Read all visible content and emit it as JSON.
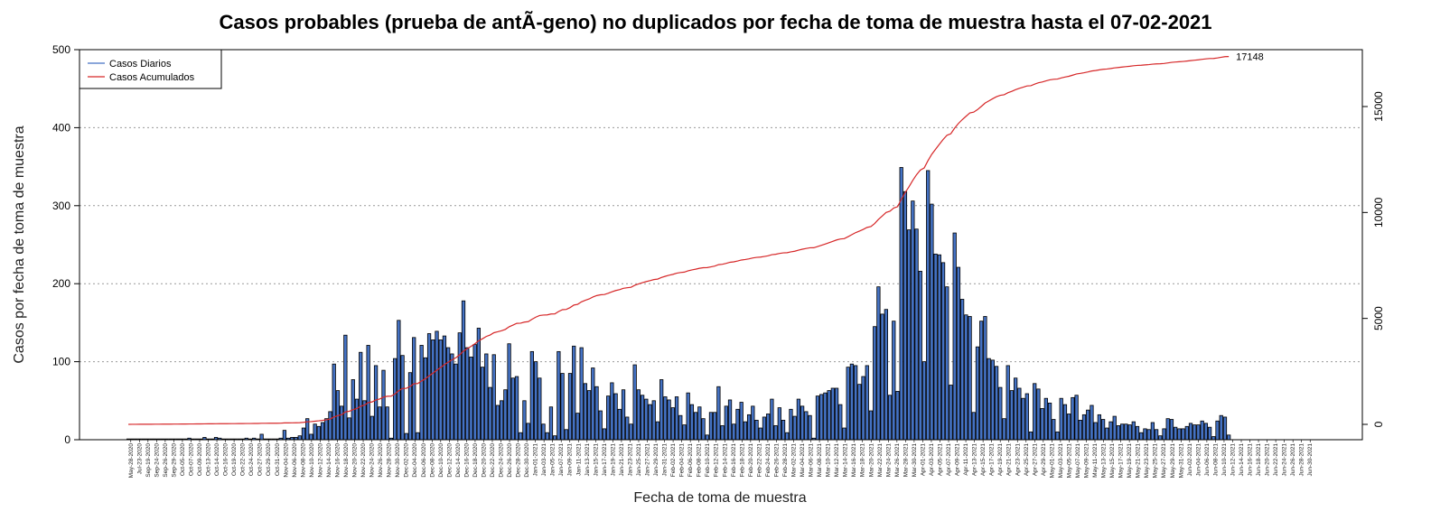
{
  "chart_data": {
    "type": "bar",
    "title": "Casos probables (prueba de antÃ-geno) no duplicados por fecha de toma de muestra hasta el 07-02-2021",
    "xlabel": "Fecha de toma de muestra",
    "ylabel": "Casos por fecha de toma de muestra",
    "ylim": [
      0,
      500
    ],
    "y2lim": [
      0,
      17500
    ],
    "y_ticks": [
      0,
      100,
      200,
      300,
      400,
      500
    ],
    "y2_ticks": [
      0,
      5000,
      10000,
      15000
    ],
    "grid": "horizontal dotted",
    "legend_position": "top-left",
    "final_cumulative_label": "17148",
    "x_tick_labels": [
      "May-28-2020",
      "Jul-23-2020",
      "Sep-19-2020",
      "Sep-24-2020",
      "Sep-26-2020",
      "Sep-29-2020",
      "Oct-05-2020",
      "Oct-07-2020",
      "Oct-09-2020",
      "Oct-13-2020",
      "Oct-14-2020",
      "Oct-16-2020",
      "Oct-19-2020",
      "Oct-22-2020",
      "Oct-24-2020",
      "Oct-27-2020",
      "Oct-29-2020",
      "Oct-31-2020",
      "Nov-04-2020",
      "Nov-06-2020",
      "Nov-08-2020",
      "Nov-10-2020",
      "Nov-12-2020",
      "Nov-14-2020",
      "Nov-16-2020",
      "Nov-18-2020",
      "Nov-20-2020",
      "Nov-22-2020",
      "Nov-24-2020",
      "Nov-26-2020",
      "Nov-28-2020",
      "Nov-30-2020",
      "Dec-02-2020",
      "Dec-04-2020",
      "Dec-06-2020",
      "Dec-08-2020",
      "Dec-10-2020",
      "Dec-12-2020",
      "Dec-14-2020",
      "Dec-16-2020",
      "Dec-18-2020",
      "Dec-20-2020",
      "Dec-22-2020",
      "Dec-24-2020",
      "Dec-26-2020",
      "Dec-28-2020",
      "Dec-30-2020",
      "Jan-01-2021",
      "Jan-03-2021",
      "Jan-05-2021",
      "Jan-07-2021",
      "Jan-09-2021",
      "Jan-11-2021",
      "Jan-13-2021",
      "Jan-15-2021",
      "Jan-17-2021",
      "Jan-19-2021",
      "Jan-21-2021",
      "Jan-23-2021",
      "Jan-25-2021",
      "Jan-27-2021",
      "Jan-29-2021",
      "Jan-31-2021",
      "Feb-02-2021",
      "Feb-04-2021",
      "Feb-06-2021",
      "Feb-08-2021",
      "Feb-10-2021",
      "Feb-12-2021",
      "Feb-14-2021",
      "Feb-16-2021",
      "Feb-18-2021",
      "Feb-20-2021",
      "Feb-22-2021",
      "Feb-24-2021",
      "Feb-26-2021",
      "Feb-28-2021",
      "Mar-02-2021",
      "Mar-04-2021",
      "Mar-06-2021",
      "Mar-08-2021",
      "Mar-10-2021",
      "Mar-12-2021",
      "Mar-14-2021",
      "Mar-16-2021",
      "Mar-18-2021",
      "Mar-20-2021",
      "Mar-22-2021",
      "Mar-24-2021",
      "Mar-26-2021",
      "Mar-28-2021",
      "Mar-30-2021",
      "Apr-01-2021",
      "Apr-03-2021",
      "Apr-05-2021",
      "Apr-07-2021",
      "Apr-09-2021",
      "Apr-11-2021",
      "Apr-13-2021",
      "Apr-15-2021",
      "Apr-17-2021",
      "Apr-19-2021",
      "Apr-21-2021",
      "Apr-23-2021",
      "Apr-25-2021",
      "Apr-27-2021",
      "Apr-29-2021",
      "May-01-2021",
      "May-03-2021",
      "May-05-2021",
      "May-07-2021",
      "May-09-2021",
      "May-11-2021",
      "May-13-2021",
      "May-15-2021",
      "May-17-2021",
      "May-19-2021",
      "May-21-2021",
      "May-23-2021",
      "May-25-2021",
      "May-27-2021",
      "May-29-2021",
      "May-31-2021",
      "Jun-02-2021",
      "Jun-04-2021",
      "Jun-06-2021",
      "Jun-08-2021",
      "Jun-10-2021",
      "Jun-12-2021",
      "Jun-14-2021",
      "Jun-16-2021",
      "Jun-18-2021",
      "Jun-20-2021",
      "Jun-22-2021",
      "Jun-24-2021",
      "Jun-26-2021",
      "Jun-28-2021",
      "Jun-30-2021"
    ],
    "series": [
      {
        "name": "Casos Diarios",
        "color": "#4472C4",
        "axis": "left",
        "values": [
          1,
          1,
          1,
          1,
          1,
          1,
          1,
          1,
          1,
          1,
          1,
          1,
          1,
          1,
          1,
          1,
          2,
          1,
          1,
          1,
          3,
          1,
          1,
          3,
          2,
          1,
          1,
          1,
          1,
          1,
          1,
          2,
          1,
          2,
          1,
          7,
          1,
          1,
          1,
          1,
          2,
          12,
          2,
          3,
          3,
          5,
          15,
          27,
          7,
          20,
          17,
          22,
          27,
          36,
          97,
          63,
          43,
          134,
          28,
          77,
          52,
          112,
          50,
          121,
          30,
          95,
          42,
          89,
          42,
          2,
          104,
          153,
          108,
          8,
          86,
          131,
          9,
          121,
          105,
          136,
          128,
          139,
          128,
          133,
          118,
          110,
          97,
          137,
          178,
          118,
          106,
          122,
          143,
          93,
          110,
          67,
          109,
          44,
          50,
          64,
          123,
          79,
          81,
          9,
          50,
          21,
          113,
          100,
          79,
          20,
          9,
          42,
          5,
          113,
          85,
          13,
          85,
          120,
          34,
          118,
          72,
          63,
          92,
          68,
          37,
          14,
          56,
          73,
          59,
          39,
          64,
          29,
          20,
          96,
          64,
          57,
          52,
          45,
          50,
          23,
          77,
          55,
          51,
          41,
          55,
          31,
          19,
          60,
          45,
          35,
          42,
          27,
          6,
          35,
          35,
          68,
          18,
          43,
          51,
          20,
          39,
          48,
          23,
          32,
          43,
          25,
          15,
          29,
          33,
          52,
          18,
          41,
          25,
          9,
          39,
          30,
          52,
          43,
          36,
          31,
          2,
          56,
          58,
          60,
          63,
          66,
          66,
          45,
          15,
          93,
          97,
          95,
          71,
          81,
          95,
          37,
          145,
          196,
          161,
          167,
          57,
          152,
          62,
          349,
          318,
          269,
          306,
          270,
          216,
          100,
          345,
          302,
          238,
          237,
          227,
          196,
          70,
          265,
          221,
          180,
          160,
          158,
          35,
          119,
          152,
          158,
          104,
          102,
          94,
          67,
          27,
          95,
          63,
          79,
          66,
          53,
          59,
          10,
          72,
          65,
          40,
          53,
          47,
          26,
          10,
          53,
          45,
          33,
          54,
          57,
          25,
          32,
          38,
          44,
          22,
          32,
          26,
          15,
          23,
          30,
          18,
          20,
          20,
          19,
          23,
          17,
          9,
          14,
          13,
          22,
          13,
          5,
          14,
          27,
          26,
          16,
          14,
          14,
          17,
          21,
          19,
          19,
          24,
          21,
          16,
          4,
          24,
          31,
          29,
          6
        ],
        "bar_positions": [
          0,
          1,
          2,
          3,
          4,
          5,
          6,
          7,
          8,
          9,
          10,
          11,
          12,
          13,
          14,
          15,
          16,
          17,
          18,
          19,
          20,
          21,
          22,
          23,
          24,
          25,
          26,
          27,
          28,
          29,
          30,
          31,
          32,
          33,
          34,
          35,
          36,
          37,
          38,
          39,
          40,
          41,
          42,
          43,
          44,
          45,
          46,
          47,
          48,
          49,
          50,
          51,
          52,
          53,
          54,
          55,
          56,
          57,
          58,
          59,
          60,
          61,
          62,
          63,
          64,
          65,
          66,
          67,
          68,
          69,
          70,
          71,
          72,
          73,
          74,
          75,
          76,
          77,
          78,
          79,
          80,
          81,
          82,
          83,
          84,
          85,
          86,
          87,
          88,
          89,
          90,
          91,
          92,
          93,
          94,
          95,
          96,
          97,
          98,
          99,
          100,
          101,
          102,
          103,
          104,
          105,
          106,
          107,
          108,
          109,
          110,
          111,
          112,
          113,
          114,
          115,
          116,
          117,
          118,
          119,
          120,
          121,
          122,
          123,
          124,
          125,
          126,
          127,
          128,
          129,
          130,
          131,
          132,
          133,
          134,
          135,
          136,
          137,
          138,
          139,
          140,
          141,
          142,
          143,
          144,
          145,
          146,
          147,
          148,
          149,
          150,
          151,
          152,
          153,
          154,
          155,
          156,
          157,
          158,
          159,
          160,
          161,
          162,
          163,
          164,
          165,
          166,
          167,
          168,
          169,
          170,
          171,
          172,
          173,
          174,
          175,
          176,
          177,
          178,
          179,
          180,
          181,
          182,
          183,
          184,
          185,
          186,
          187,
          188,
          189,
          190,
          191,
          192,
          193,
          194,
          195,
          196,
          197,
          198,
          199,
          200,
          201,
          202,
          203,
          204,
          205,
          206,
          207,
          208,
          209,
          210,
          211,
          212,
          213,
          214,
          215,
          216,
          217,
          218,
          219,
          220,
          221,
          222,
          223,
          224,
          225,
          226,
          227,
          228,
          229,
          230,
          231,
          232,
          233,
          234,
          235,
          236,
          237,
          238,
          239,
          240,
          241,
          242,
          243,
          244,
          245,
          246,
          247,
          248,
          249,
          250,
          251,
          252,
          253,
          254,
          255,
          256,
          257,
          258,
          259,
          260,
          261,
          262,
          263,
          264,
          265,
          266,
          267,
          268,
          269,
          270,
          271,
          272,
          273,
          274,
          275,
          276,
          277,
          278,
          279,
          280,
          281,
          282,
          283,
          284,
          285,
          286,
          287,
          288,
          289,
          290,
          291,
          292,
          293,
          294,
          295,
          296,
          297,
          298,
          299,
          300,
          301,
          302,
          303,
          304,
          305,
          306,
          307,
          308,
          309,
          310,
          311
        ]
      },
      {
        "name": "Casos Acumulados",
        "color": "#D62728",
        "axis": "right"
      }
    ]
  }
}
